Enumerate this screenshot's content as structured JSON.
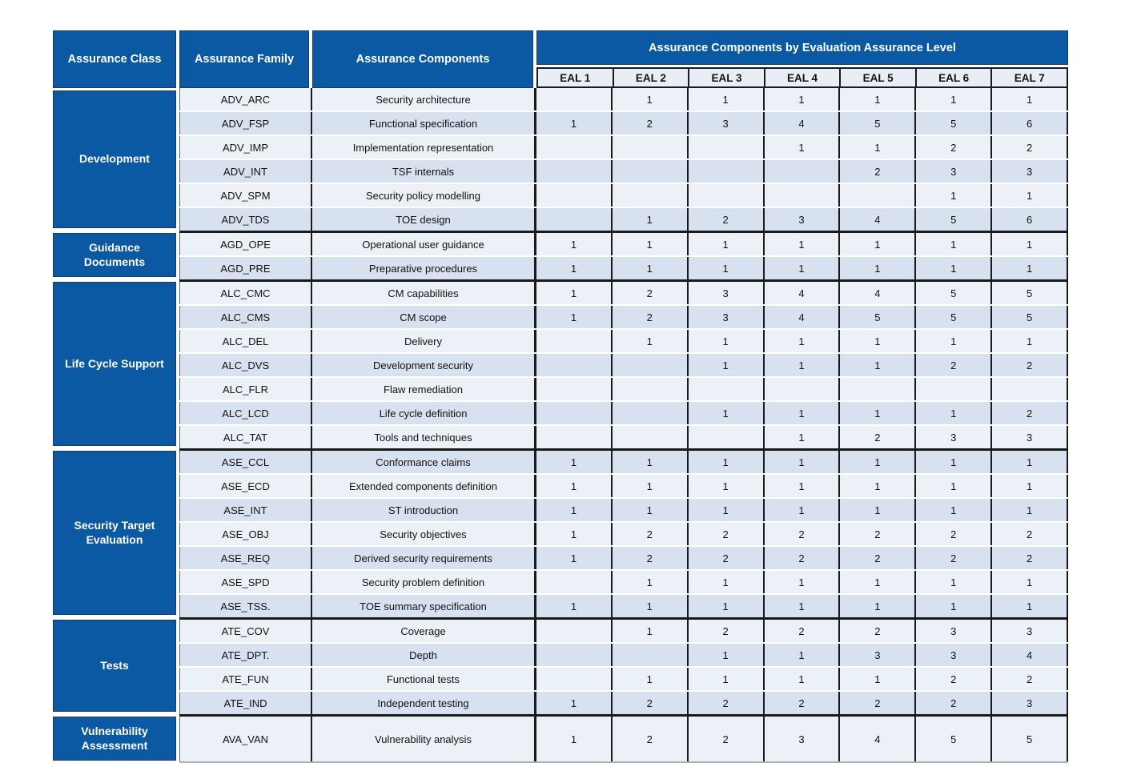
{
  "header": {
    "class_label": "Assurance Class",
    "family_label": "Assurance Family",
    "components_label": "Assurance Components",
    "eal_banner": "Assurance Components by Evaluation Assurance Level"
  },
  "eal_levels": [
    "EAL 1",
    "EAL 2",
    "EAL 3",
    "EAL 4",
    "EAL 5",
    "EAL 6",
    "EAL 7"
  ],
  "colors": {
    "header_blue": "#0b59a2",
    "row_light": "#ecf1f8",
    "row_dark": "#d8e1ef",
    "eal_label_bg": "#e9edf5",
    "border_dark": "#1a1a1a"
  },
  "sections": [
    {
      "class": "Development",
      "rows": [
        {
          "family": "ADV_ARC",
          "component": "Security architecture",
          "eal": [
            "",
            "1",
            "1",
            "1",
            "1",
            "1",
            "1"
          ]
        },
        {
          "family": "ADV_FSP",
          "component": "Functional specification",
          "eal": [
            "1",
            "2",
            "3",
            "4",
            "5",
            "5",
            "6"
          ]
        },
        {
          "family": "ADV_IMP",
          "component": "Implementation representation",
          "eal": [
            "",
            "",
            "",
            "1",
            "1",
            "2",
            "2"
          ]
        },
        {
          "family": "ADV_INT",
          "component": "TSF internals",
          "eal": [
            "",
            "",
            "",
            "",
            "2",
            "3",
            "3"
          ]
        },
        {
          "family": "ADV_SPM",
          "component": "Security policy modelling",
          "eal": [
            "",
            "",
            "",
            "",
            "",
            "1",
            "1"
          ]
        },
        {
          "family": "ADV_TDS",
          "component": "TOE design",
          "eal": [
            "",
            "1",
            "2",
            "3",
            "4",
            "5",
            "6"
          ]
        }
      ]
    },
    {
      "class": "Guidance Documents",
      "rows": [
        {
          "family": "AGD_OPE",
          "component": "Operational user guidance",
          "eal": [
            "1",
            "1",
            "1",
            "1",
            "1",
            "1",
            "1"
          ]
        },
        {
          "family": "AGD_PRE",
          "component": "Preparative procedures",
          "eal": [
            "1",
            "1",
            "1",
            "1",
            "1",
            "1",
            "1"
          ]
        }
      ]
    },
    {
      "class": "Life Cycle Support",
      "rows": [
        {
          "family": "ALC_CMC",
          "component": "CM capabilities",
          "eal": [
            "1",
            "2",
            "3",
            "4",
            "4",
            "5",
            "5"
          ]
        },
        {
          "family": "ALC_CMS",
          "component": "CM scope",
          "eal": [
            "1",
            "2",
            "3",
            "4",
            "5",
            "5",
            "5"
          ]
        },
        {
          "family": "ALC_DEL",
          "component": "Delivery",
          "eal": [
            "",
            "1",
            "1",
            "1",
            "1",
            "1",
            "1"
          ]
        },
        {
          "family": "ALC_DVS",
          "component": "Development security",
          "eal": [
            "",
            "",
            "1",
            "1",
            "1",
            "2",
            "2"
          ]
        },
        {
          "family": "ALC_FLR",
          "component": "Flaw remediation",
          "eal": [
            "",
            "",
            "",
            "",
            "",
            "",
            ""
          ]
        },
        {
          "family": "ALC_LCD",
          "component": "Life cycle definition",
          "eal": [
            "",
            "",
            "1",
            "1",
            "1",
            "1",
            "2"
          ]
        },
        {
          "family": "ALC_TAT",
          "component": "Tools and techniques",
          "eal": [
            "",
            "",
            "",
            "1",
            "2",
            "3",
            "3"
          ]
        }
      ]
    },
    {
      "class": "Security Target Evaluation",
      "rows": [
        {
          "family": "ASE_CCL",
          "component": "Conformance claims",
          "eal": [
            "1",
            "1",
            "1",
            "1",
            "1",
            "1",
            "1"
          ]
        },
        {
          "family": "ASE_ECD",
          "component": "Extended components definition",
          "eal": [
            "1",
            "1",
            "1",
            "1",
            "1",
            "1",
            "1"
          ]
        },
        {
          "family": "ASE_INT",
          "component": "ST introduction",
          "eal": [
            "1",
            "1",
            "1",
            "1",
            "1",
            "1",
            "1"
          ]
        },
        {
          "family": "ASE_OBJ",
          "component": "Security objectives",
          "eal": [
            "1",
            "2",
            "2",
            "2",
            "2",
            "2",
            "2"
          ]
        },
        {
          "family": "ASE_REQ",
          "component": "Derived security requirements",
          "eal": [
            "1",
            "2",
            "2",
            "2",
            "2",
            "2",
            "2"
          ]
        },
        {
          "family": "ASE_SPD",
          "component": "Security problem definition",
          "eal": [
            "",
            "1",
            "1",
            "1",
            "1",
            "1",
            "1"
          ]
        },
        {
          "family": "ASE_TSS.",
          "component": "TOE summary specification",
          "eal": [
            "1",
            "1",
            "1",
            "1",
            "1",
            "1",
            "1"
          ]
        }
      ]
    },
    {
      "class": "Tests",
      "rows": [
        {
          "family": "ATE_COV",
          "component": "Coverage",
          "eal": [
            "",
            "1",
            "2",
            "2",
            "2",
            "3",
            "3"
          ]
        },
        {
          "family": "ATE_DPT.",
          "component": "Depth",
          "eal": [
            "",
            "",
            "1",
            "1",
            "3",
            "3",
            "4"
          ]
        },
        {
          "family": "ATE_FUN",
          "component": "Functional tests",
          "eal": [
            "",
            "1",
            "1",
            "1",
            "1",
            "2",
            "2"
          ]
        },
        {
          "family": "ATE_IND",
          "component": "Independent testing",
          "eal": [
            "1",
            "2",
            "2",
            "2",
            "2",
            "2",
            "3"
          ]
        }
      ]
    },
    {
      "class": "Vulnerability Assessment",
      "tall": true,
      "rows": [
        {
          "family": "AVA_VAN",
          "component": "Vulnerability analysis",
          "eal": [
            "1",
            "2",
            "2",
            "3",
            "4",
            "5",
            "5"
          ]
        }
      ]
    }
  ]
}
